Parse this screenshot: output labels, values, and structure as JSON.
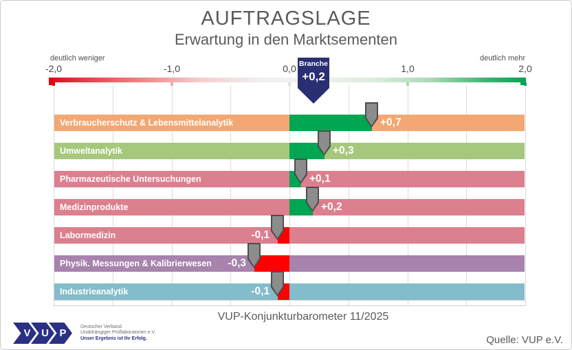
{
  "title": "AUFTRAGSLAGE",
  "subtitle": "Erwartung in den Marktsementen",
  "scale": {
    "left_label": "deutlich weniger",
    "right_label": "deutlich mehr",
    "branche_label": "Branche",
    "branche_value": "+0,2"
  },
  "chart_data": {
    "type": "bar",
    "orientation": "horizontal",
    "title": "AUFTRAGSLAGE — Erwartung in den Marktsementen",
    "xlim": [
      -2.0,
      2.0
    ],
    "grid_step": 0.5,
    "tick_values": [
      -2,
      -1,
      0,
      1,
      2
    ],
    "tick_labels": [
      "-2,0",
      "-1,0",
      "0,0",
      "1,0",
      "2,0"
    ],
    "branche_value": 0.2,
    "segments": [
      {
        "label": "Verbraucherschutz & Lebensmittelanalytik",
        "value": 0.7,
        "display": "+0,7",
        "band_color": "#F3A772"
      },
      {
        "label": "Umweltanalytik",
        "value": 0.3,
        "display": "+0,3",
        "band_color": "#A6C87D"
      },
      {
        "label": "Pharmazeutische Untersuchungen",
        "value": 0.1,
        "display": "+0,1",
        "band_color": "#DC7F8E"
      },
      {
        "label": "Medizinprodukte",
        "value": 0.2,
        "display": "+0,2",
        "band_color": "#DC7F8E"
      },
      {
        "label": "Labormedizin",
        "value": -0.1,
        "display": "-0,1",
        "band_color": "#DC7F8E"
      },
      {
        "label": "Physik. Messungen & Kalibrierwesen",
        "value": -0.3,
        "display": "-0,3",
        "band_color": "#A783AD"
      },
      {
        "label": "Industrieanalytik",
        "value": -0.1,
        "display": "-0,1",
        "band_color": "#83BCCA"
      }
    ],
    "colors": {
      "positive_bar": "#00A651",
      "negative_bar": "#FF0000",
      "marker_fill": "#8C8C8C",
      "marker_border": "#4D4D4D",
      "pennant": "#2A2E72",
      "gradient_left": "#E30613",
      "gradient_right": "#00A651",
      "tick_marks": [
        "#E30613",
        "#EFA8A8",
        "#E2E2E2",
        "#ABD9B5",
        "#00A651"
      ]
    }
  },
  "footer": {
    "caption": "VUP-Konjunkturbarometer 11/2025",
    "source": "Quelle: VUP e.V."
  },
  "logo": {
    "letters": [
      "V",
      "U",
      "P"
    ],
    "line1": "Deutscher Verband",
    "line2": "Unabhängiger Prüflaboratorien e.V.",
    "line3": "Unser Ergebnis ist Ihr Erfolg."
  }
}
